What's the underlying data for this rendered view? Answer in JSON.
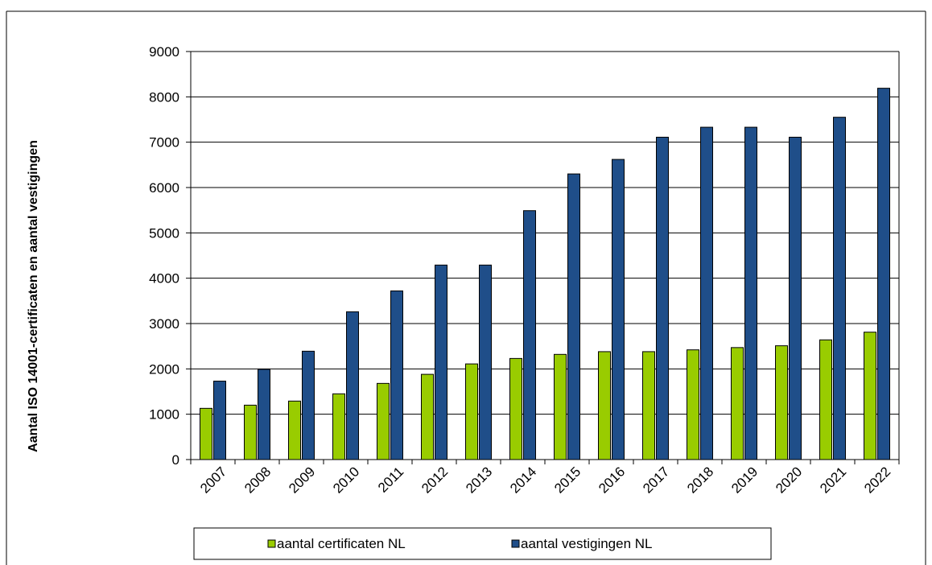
{
  "chart_data": {
    "type": "bar",
    "title": "",
    "xlabel": "",
    "ylabel": "Aantal ISO 14001-certificaten en  aantal vestigingen",
    "ylim": [
      0,
      9000
    ],
    "yticks": [
      "0",
      "1000",
      "2000",
      "3000",
      "4000",
      "5000",
      "6000",
      "7000",
      "8000",
      "9000"
    ],
    "grid": true,
    "legend_position": "bottom",
    "categories": [
      "2007",
      "2008",
      "2009",
      "2010",
      "2011",
      "2012",
      "2013",
      "2014",
      "2015",
      "2016",
      "2017",
      "2018",
      "2019",
      "2020",
      "2021",
      "2022"
    ],
    "series": [
      {
        "name": "aantal certificaten NL",
        "color": "#99cc00",
        "values": [
          1130,
          1200,
          1290,
          1450,
          1680,
          1880,
          2110,
          2230,
          2320,
          2380,
          2380,
          2420,
          2470,
          2510,
          2640,
          2810
        ]
      },
      {
        "name": "aantal vestigingen NL",
        "color": "#1f4e89",
        "values": [
          1730,
          1990,
          2390,
          3260,
          3720,
          4290,
          4290,
          5490,
          6300,
          6620,
          7110,
          7330,
          7330,
          7110,
          7550,
          8190
        ]
      }
    ]
  }
}
